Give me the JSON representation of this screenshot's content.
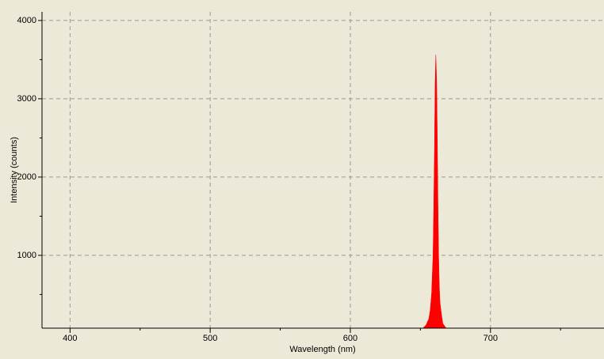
{
  "chart_data": {
    "type": "area",
    "x_label": "Wavelength (nm)",
    "y_label": "Intensity (counts)",
    "x": [
      652,
      654,
      656,
      657,
      658,
      659,
      659.5,
      660,
      660.5,
      661,
      661.3,
      661.6,
      662,
      662.5,
      663,
      663.5,
      664,
      665,
      666,
      668
    ],
    "values": [
      75,
      110,
      190,
      300,
      520,
      1000,
      1600,
      2300,
      3200,
      3560,
      3400,
      3200,
      2600,
      1700,
      1000,
      600,
      400,
      250,
      130,
      80
    ],
    "color": "#ff0000",
    "xlim": [
      380,
      781
    ],
    "ylim": [
      70,
      4110
    ],
    "xticks": [
      400,
      500,
      600,
      700
    ],
    "yticks": [
      1000,
      2000,
      3000,
      4000
    ],
    "xminor": [
      450,
      550,
      650,
      750
    ],
    "yminor": [
      500,
      1500,
      2500,
      3500
    ],
    "grid": true
  }
}
